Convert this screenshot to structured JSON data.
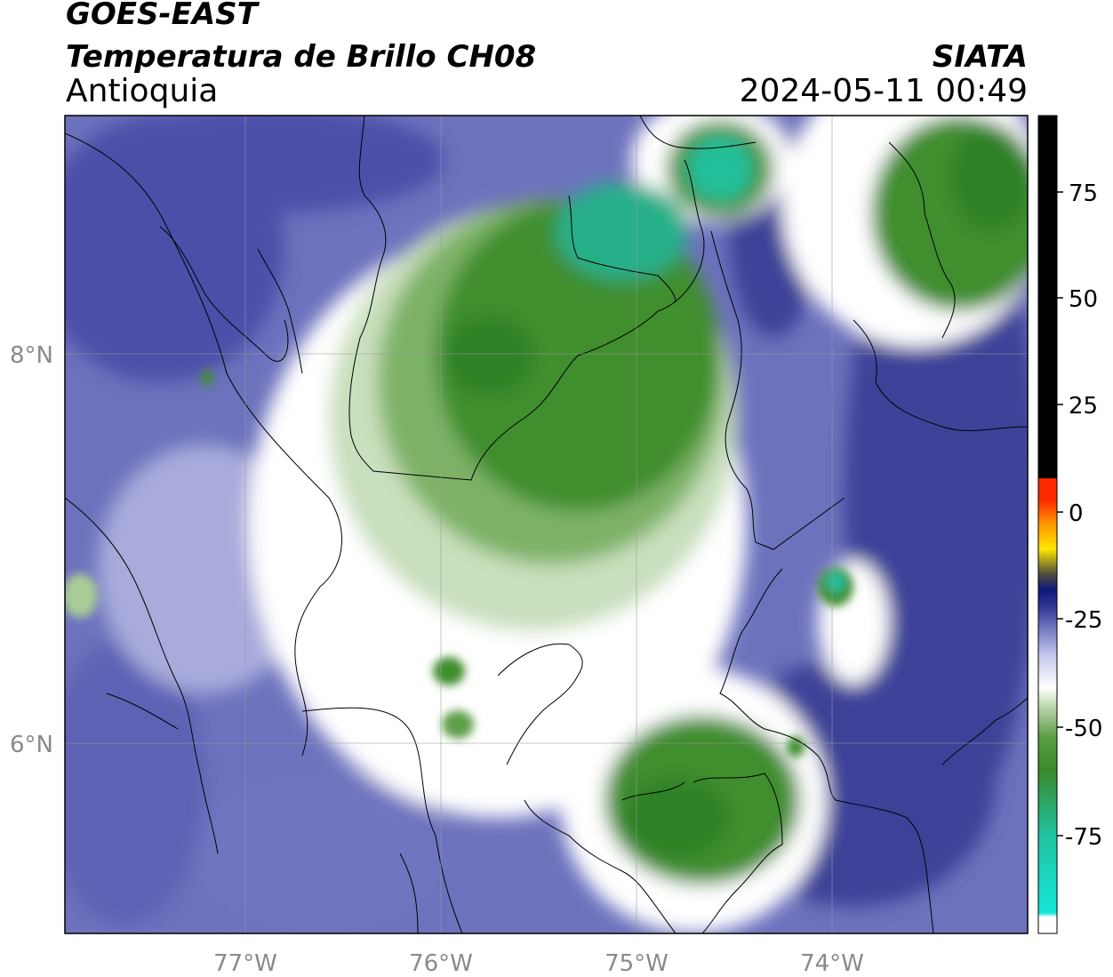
{
  "header": {
    "satellite": "GOES-EAST",
    "product": "Temperatura de Brillo CH08",
    "region": "Antioquia",
    "agency": "SIATA",
    "datetime": "2024-05-11 00:49"
  },
  "map": {
    "lon_labels": [
      "77°W",
      "76°W",
      "75°W",
      "74°W"
    ],
    "lat_labels": [
      "8°N",
      "6°N"
    ],
    "lon_range": [
      -77.95,
      -73.05
    ],
    "lat_range": [
      5.05,
      9.25
    ]
  },
  "colorbar": {
    "tick_labels": [
      "75",
      "50",
      "25",
      "0",
      "-25",
      "-50",
      "-75"
    ],
    "range": [
      -92,
      90
    ],
    "colors": {
      "green_dark": "#3a8a2a",
      "green_light": "#a8cc96",
      "teal": "#1fc3a0",
      "blue_dark": "#2f3694",
      "blue_mid": "#7a7fc4",
      "blue_light": "#c6c8ec",
      "warm_black": "#000000",
      "hot_red": "#ff2a00",
      "hot_yellow": "#ffe600"
    }
  }
}
